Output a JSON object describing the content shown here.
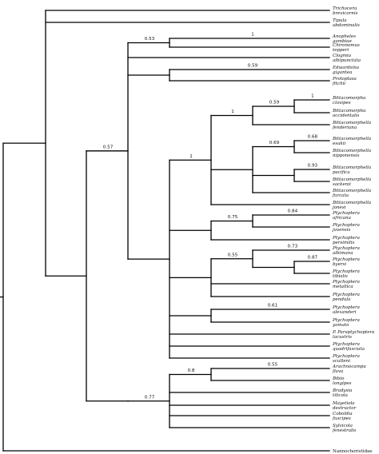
{
  "figure": {
    "type": "phylogenetic-tree",
    "taxa": [
      {
        "lines": [
          "Trichocera",
          "brevicornis"
        ],
        "italic": true
      },
      {
        "lines": [
          "Tipula",
          "abdominalis"
        ],
        "italic": true
      },
      {
        "lines": [
          "Anopheles",
          "gambiae"
        ],
        "italic": true
      },
      {
        "lines": [
          "Chironomus",
          "tepperi"
        ],
        "italic": true
      },
      {
        "lines": [
          "Clogmia",
          "albipunctata"
        ],
        "italic": true
      },
      {
        "lines": [
          "Edwardsina",
          "gigantea"
        ],
        "italic": true
      },
      {
        "lines": [
          "Protoplasa",
          "fitchii"
        ],
        "italic": true
      },
      {
        "lines": [
          "Bittacomorpha",
          "clavipes"
        ],
        "italic": true
      },
      {
        "lines": [
          "Bittacomorpha",
          "occidentalis"
        ],
        "italic": true
      },
      {
        "lines": [
          "Bittacomorphella",
          "fenderiana"
        ],
        "italic": true
      },
      {
        "lines": [
          "Bittacomorphella",
          "esakii"
        ],
        "italic": true
      },
      {
        "lines": [
          "Bittacomorphella",
          "nipponensis"
        ],
        "italic": true
      },
      {
        "lines": [
          "Bittacomorphella",
          "pacifica"
        ],
        "italic": true
      },
      {
        "lines": [
          "Bittacomorphella",
          "sackenii"
        ],
        "italic": true
      },
      {
        "lines": [
          "Bittacomorphella",
          "furcata"
        ],
        "italic": true
      },
      {
        "lines": [
          "Bittacomorphella",
          "jonesi"
        ],
        "italic": true
      },
      {
        "lines": [
          "Ptychoptera",
          "africana"
        ],
        "italic": true
      },
      {
        "lines": [
          "Ptychoptera",
          "javensis"
        ],
        "italic": true
      },
      {
        "lines": [
          "Ptychoptera",
          "persimilis"
        ],
        "italic": true
      },
      {
        "lines": [
          "Ptychoptera",
          "albimana"
        ],
        "italic": true
      },
      {
        "lines": [
          "Ptychoptera",
          "byersi"
        ],
        "italic": true
      },
      {
        "lines": [
          "Ptychoptera",
          "tibialis"
        ],
        "italic": true
      },
      {
        "lines": [
          "Ptychoptera",
          "metallica"
        ],
        "italic": true
      },
      {
        "lines": [
          "Ptychoptera",
          "pendula"
        ],
        "italic": true
      },
      {
        "lines": [
          "Ptychoptera",
          "alexanderi"
        ],
        "italic": true
      },
      {
        "lines": [
          "Ptychoptera",
          "yamato"
        ],
        "italic": true
      },
      {
        "lines": [
          "P. Paraptychoptera",
          "lacustris"
        ],
        "italic": true
      },
      {
        "lines": [
          "Ptychoptera",
          "quadrifasciata"
        ],
        "italic": true
      },
      {
        "lines": [
          "Ptychoptera",
          "scutleni"
        ],
        "italic": true
      },
      {
        "lines": [
          "Arachnocampa",
          "flava"
        ],
        "italic": true
      },
      {
        "lines": [
          "Bibio",
          "longipes"
        ],
        "italic": true
      },
      {
        "lines": [
          "Bradysia",
          "tilicola"
        ],
        "italic": true
      },
      {
        "lines": [
          "Mayetiola",
          "destructor"
        ],
        "italic": true
      },
      {
        "lines": [
          "Coboldia",
          "fuscipes"
        ],
        "italic": true
      },
      {
        "lines": [
          "Sylvicola",
          "fenestralis"
        ],
        "italic": true
      },
      {
        "lines": [
          "Nannochoristidae"
        ],
        "italic": false
      }
    ],
    "tree": {
      "c": [
        {
          "c": [
            {
              "t": 0
            },
            {
              "t": 1
            },
            {
              "s": "0.57",
              "c": [
                {
                  "s": "0.53",
                  "c": [
                    {
                      "s": "1",
                      "c": [
                        {
                          "t": 2
                        },
                        {
                          "t": 3
                        }
                      ]
                    },
                    {
                      "t": 4
                    },
                    {
                      "s": "0.59",
                      "c": [
                        {
                          "t": 5
                        },
                        {
                          "t": 6
                        }
                      ]
                    },
                    {
                      "s": "1",
                      "c": [
                        {
                          "s": "1",
                          "c": [
                            {
                              "s": "0.59",
                              "c": [
                                {
                                  "s": "1",
                                  "c": [
                                    {
                                      "t": 7
                                    },
                                    {
                                      "t": 8
                                    }
                                  ]
                                },
                                {
                                  "t": 9
                                }
                              ]
                            },
                            {
                              "s": "0.69",
                              "c": [
                                {
                                  "s": "0.68",
                                  "c": [
                                    {
                                      "t": 10
                                    },
                                    {
                                      "t": 11
                                    }
                                  ]
                                },
                                {
                                  "s": "0.93",
                                  "c": [
                                    {
                                      "t": 12
                                    },
                                    {
                                      "t": 13
                                    }
                                  ]
                                },
                                {
                                  "t": 14
                                }
                              ]
                            },
                            {
                              "t": 15
                            }
                          ]
                        },
                        {
                          "s": "0.75",
                          "c": [
                            {
                              "s": "0.84",
                              "c": [
                                {
                                  "t": 16
                                },
                                {
                                  "t": 17
                                }
                              ]
                            },
                            {
                              "t": 18
                            }
                          ]
                        },
                        {
                          "s": "0.55",
                          "c": [
                            {
                              "s": "0.73",
                              "c": [
                                {
                                  "t": 19
                                },
                                {
                                  "s": "0.87",
                                  "c": [
                                    {
                                      "t": 20
                                    },
                                    {
                                      "t": 21
                                    }
                                  ]
                                }
                              ]
                            },
                            {
                              "t": 22
                            },
                            {
                              "t": 23
                            }
                          ]
                        },
                        {
                          "s": "0.61",
                          "c": [
                            {
                              "t": 24
                            },
                            {
                              "t": 25
                            }
                          ]
                        },
                        {
                          "t": 26
                        },
                        {
                          "t": 27
                        },
                        {
                          "t": 28
                        }
                      ]
                    }
                  ]
                },
                {
                  "s": "0.77",
                  "c": [
                    {
                      "s": "0.8",
                      "c": [
                        {
                          "s": "0.55",
                          "c": [
                            {
                              "t": 29
                            },
                            {
                              "t": 30
                            }
                          ]
                        },
                        {
                          "t": 31
                        },
                        {
                          "t": 32
                        },
                        {
                          "t": 33
                        },
                        {
                          "t": 34
                        }
                      ]
                    }
                  ]
                }
              ]
            }
          ]
        },
        {
          "t": 35
        }
      ]
    }
  }
}
